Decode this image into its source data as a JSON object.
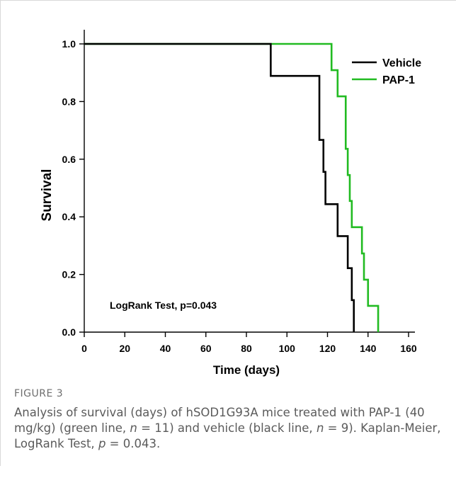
{
  "chart_data": {
    "type": "line",
    "step": true,
    "xlabel": "Time (days)",
    "ylabel": "Survival",
    "xlim": [
      0,
      160
    ],
    "ylim": [
      0,
      1.0
    ],
    "xticks": [
      0,
      20,
      40,
      60,
      80,
      100,
      120,
      140,
      160
    ],
    "yticks": [
      "0.0",
      "0.2",
      "0.4",
      "0.6",
      "0.8",
      "1.0"
    ],
    "legend_position": "top-right",
    "annotation": "LogRank Test, p=0.043",
    "series": [
      {
        "name": "Vehicle",
        "color": "#000000",
        "x": [
          0,
          92,
          116,
          118,
          119,
          125,
          130,
          132,
          133
        ],
        "y": [
          1.0,
          0.889,
          0.667,
          0.556,
          0.444,
          0.333,
          0.222,
          0.111,
          0.0
        ]
      },
      {
        "name": "PAP-1",
        "color": "#22bb22",
        "x": [
          0,
          122,
          125,
          129,
          130,
          131,
          132,
          137,
          138,
          140,
          145
        ],
        "y": [
          1.0,
          0.909,
          0.818,
          0.636,
          0.545,
          0.455,
          0.364,
          0.273,
          0.182,
          0.091,
          0.0
        ]
      }
    ]
  },
  "caption": {
    "label": "FIGURE 3",
    "text_1": "Analysis of survival (days) of hSOD1G93A mice treated with PAP-1 (40 mg/kg) (green line, ",
    "n_symbol": "n",
    "text_2": " = 11) and vehicle (black line, ",
    "text_3": " = 9). Kaplan-Meier, LogRank Test, ",
    "p_symbol": "p",
    "text_4": " = 0.043."
  }
}
